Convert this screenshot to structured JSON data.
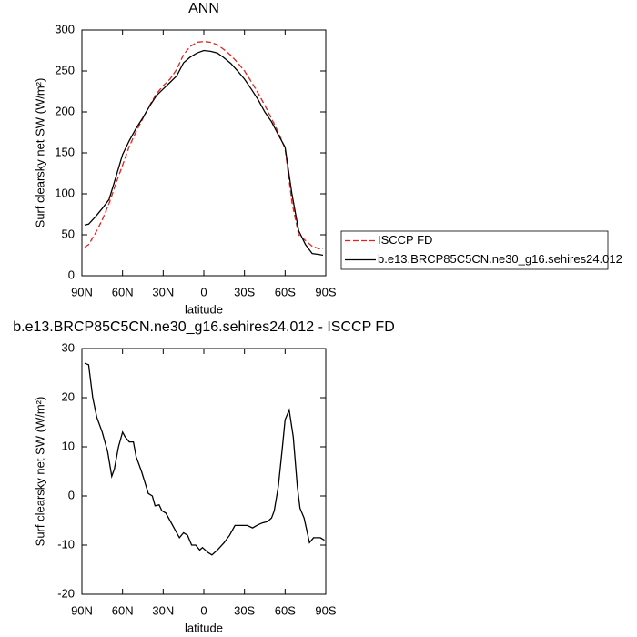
{
  "chart_data": [
    {
      "type": "line",
      "title": "ANN",
      "xlabel": "latitude",
      "ylabel": "Surf clearsky net SW (W/m²)",
      "x": [
        88,
        85,
        80,
        75,
        70,
        65,
        60,
        55,
        50,
        45,
        40,
        35,
        30,
        25,
        20,
        15,
        10,
        5,
        0,
        -5,
        -10,
        -15,
        -20,
        -25,
        -30,
        -35,
        -40,
        -45,
        -50,
        -55,
        -60,
        -65,
        -70,
        -75,
        -80,
        -85,
        -88
      ],
      "series": [
        {
          "name": "ISCCP FD",
          "color": "#e8201c",
          "dashed": true,
          "values": [
            35,
            38,
            52,
            68,
            88,
            112,
            135,
            158,
            176,
            192,
            208,
            222,
            232,
            240,
            252,
            270,
            280,
            285,
            286,
            285,
            282,
            276,
            269,
            260,
            250,
            237,
            223,
            208,
            192,
            175,
            155,
            90,
            50,
            43,
            36,
            33,
            33
          ]
        },
        {
          "name": "b.e13.BRCP85C5CN.ne30_g16.sehires24.012",
          "color": "#000000",
          "dashed": false,
          "values": [
            62,
            63,
            72,
            82,
            93,
            120,
            148,
            165,
            180,
            193,
            207,
            220,
            228,
            236,
            244,
            260,
            267,
            272,
            275,
            274,
            272,
            266,
            259,
            250,
            240,
            228,
            215,
            200,
            188,
            172,
            157,
            100,
            55,
            38,
            27,
            26,
            25
          ]
        }
      ],
      "xlim": [
        90,
        -90
      ],
      "xticks": [
        {
          "value": 90,
          "label": "90N"
        },
        {
          "value": 60,
          "label": "60N"
        },
        {
          "value": 30,
          "label": "30N"
        },
        0,
        {
          "value": -30,
          "label": "30S"
        },
        {
          "value": -60,
          "label": "60S"
        },
        {
          "value": -90,
          "label": "90S"
        }
      ],
      "ylim": [
        0,
        300
      ],
      "yticks": [
        0,
        50,
        100,
        150,
        200,
        250,
        300
      ],
      "legend_position": "right"
    },
    {
      "type": "line",
      "title": "b.e13.BRCP85C5CN.ne30_g16.sehires24.012 - ISCCP FD",
      "xlabel": "latitude",
      "ylabel": "Surf clearsky net SW (W/m²)",
      "x": [
        88,
        85,
        82,
        79,
        75,
        71,
        68,
        66,
        63,
        60,
        58,
        55,
        52,
        50,
        46,
        41,
        38,
        36,
        33,
        31,
        28,
        25,
        21,
        18,
        15,
        12,
        9,
        6,
        3,
        1,
        -3,
        -6,
        -10,
        -15,
        -19,
        -23,
        -28,
        -32,
        -36,
        -39,
        -43,
        -47,
        -50,
        -52,
        -55,
        -58,
        -60,
        -63,
        -66,
        -69,
        -71,
        -74,
        -78,
        -81,
        -86,
        -89
      ],
      "series": [
        {
          "color": "#000000",
          "dashed": false,
          "values": [
            27,
            26.7,
            20,
            16,
            13,
            9,
            4,
            5.5,
            10,
            13,
            12,
            11,
            11,
            8,
            5,
            0.5,
            0,
            -2,
            -1.8,
            -3,
            -3.5,
            -5,
            -7,
            -8.5,
            -7.5,
            -8,
            -10,
            -10,
            -11,
            -10.5,
            -11.5,
            -12,
            -11,
            -9.5,
            -8,
            -6,
            -6,
            -6,
            -6.5,
            -6,
            -5.5,
            -5.2,
            -4.5,
            -3,
            2,
            10,
            15.5,
            17.5,
            12,
            2,
            -2.5,
            -4.5,
            -9.5,
            -8.5,
            -8.5,
            -9
          ]
        }
      ],
      "xlim": [
        90,
        -90
      ],
      "xticks": [
        {
          "value": 90,
          "label": "90N"
        },
        {
          "value": 60,
          "label": "60N"
        },
        {
          "value": 30,
          "label": "30N"
        },
        0,
        {
          "value": -30,
          "label": "30S"
        },
        {
          "value": -60,
          "label": "60S"
        },
        {
          "value": -90,
          "label": "90S"
        }
      ],
      "ylim": [
        -20,
        30
      ],
      "yticks": [
        -20,
        -10,
        0,
        10,
        20,
        30
      ]
    }
  ]
}
